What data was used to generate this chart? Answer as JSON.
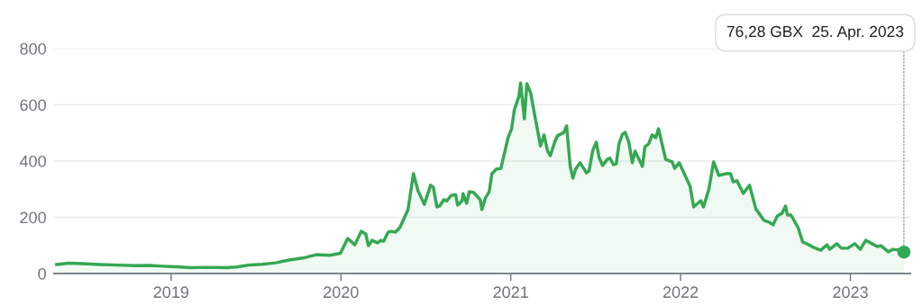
{
  "chart_data": {
    "type": "area",
    "x": [
      2018.326,
      2018.395,
      2018.475,
      2018.581,
      2018.687,
      2018.793,
      2018.873,
      2018.952,
      2019.032,
      2019.111,
      2019.218,
      2019.324,
      2019.387,
      2019.456,
      2019.536,
      2019.615,
      2019.695,
      2019.775,
      2019.854,
      2019.934,
      2019.997,
      2020.04,
      2020.082,
      2020.119,
      2020.146,
      2020.162,
      2020.183,
      2020.215,
      2020.236,
      2020.252,
      2020.278,
      2020.294,
      2020.321,
      2020.347,
      2020.395,
      2020.427,
      2020.454,
      2020.491,
      2020.528,
      2020.544,
      2020.565,
      2020.581,
      2020.607,
      2020.623,
      2020.65,
      2020.676,
      2020.687,
      2020.713,
      2020.719,
      2020.74,
      2020.756,
      2020.782,
      2020.82,
      2020.83,
      2020.851,
      2020.873,
      2020.889,
      2020.915,
      2020.942,
      2020.984,
      2021.005,
      2021.021,
      2021.048,
      2021.058,
      2021.08,
      2021.095,
      2021.117,
      2021.143,
      2021.175,
      2021.196,
      2021.217,
      2021.233,
      2021.26,
      2021.276,
      2021.313,
      2021.329,
      2021.35,
      2021.366,
      2021.382,
      2021.408,
      2021.446,
      2021.461,
      2021.483,
      2021.504,
      2021.52,
      2021.541,
      2021.568,
      2021.584,
      2021.605,
      2021.621,
      2021.637,
      2021.658,
      2021.674,
      2021.695,
      2021.716,
      2021.732,
      2021.775,
      2021.79,
      2021.812,
      2021.833,
      2021.854,
      2021.87,
      2021.912,
      2021.95,
      2021.965,
      2021.992,
      2022.056,
      2022.077,
      2022.119,
      2022.135,
      2022.167,
      2022.194,
      2022.225,
      2022.268,
      2022.294,
      2022.31,
      2022.332,
      2022.369,
      2022.406,
      2022.443,
      2022.491,
      2022.523,
      2022.544,
      2022.57,
      2022.597,
      2022.618,
      2022.629,
      2022.65,
      2022.692,
      2022.719,
      2022.756,
      2022.782,
      2022.825,
      2022.862,
      2022.878,
      2022.92,
      2022.947,
      2022.984,
      2023.026,
      2023.058,
      2023.09,
      2023.127,
      2023.159,
      2023.18,
      2023.223,
      2023.249,
      2023.286,
      2023.315
    ],
    "series": [
      {
        "color": "#34a853",
        "values": [
          32,
          37,
          35,
          32,
          30,
          28,
          29,
          26,
          24,
          21,
          22,
          21,
          23,
          30,
          33,
          38,
          48,
          55,
          67,
          65,
          72,
          125,
          102,
          150,
          141,
          99,
          118,
          109,
          118,
          115,
          147,
          150,
          147,
          163,
          227,
          355,
          294,
          246,
          314,
          307,
          237,
          240,
          263,
          258,
          278,
          280,
          243,
          258,
          284,
          250,
          291,
          288,
          263,
          227,
          269,
          291,
          355,
          371,
          374,
          483,
          515,
          582,
          630,
          678,
          550,
          675,
          643,
          557,
          454,
          493,
          435,
          419,
          470,
          490,
          502,
          525,
          381,
          339,
          371,
          394,
          358,
          365,
          438,
          467,
          413,
          384,
          406,
          410,
          387,
          390,
          461,
          496,
          502,
          467,
          394,
          435,
          381,
          451,
          461,
          493,
          483,
          515,
          406,
          397,
          374,
          394,
          310,
          237,
          259,
          237,
          301,
          397,
          349,
          355,
          355,
          326,
          330,
          285,
          314,
          230,
          189,
          182,
          173,
          205,
          214,
          240,
          208,
          208,
          163,
          112,
          102,
          93,
          83,
          102,
          86,
          106,
          90,
          90,
          106,
          86,
          118,
          106,
          96,
          99,
          77,
          86,
          83,
          76.28
        ]
      },
      {
        "type": "scatter",
        "color": "#34a853",
        "x": [
          2023.315
        ],
        "values": [
          76.28
        ]
      }
    ],
    "xlim": [
      2018.311,
      2023.353
    ],
    "xticks": [
      2019,
      2020,
      2021,
      2022,
      2023
    ],
    "ylim": [
      0,
      800
    ],
    "yticks": [
      0,
      200,
      400,
      600,
      800
    ],
    "grid": "y",
    "annotations": [
      {
        "text": "76,28 GBX  25. Apr. 2023",
        "x": 2023.315,
        "y": 76.28
      }
    ]
  }
}
